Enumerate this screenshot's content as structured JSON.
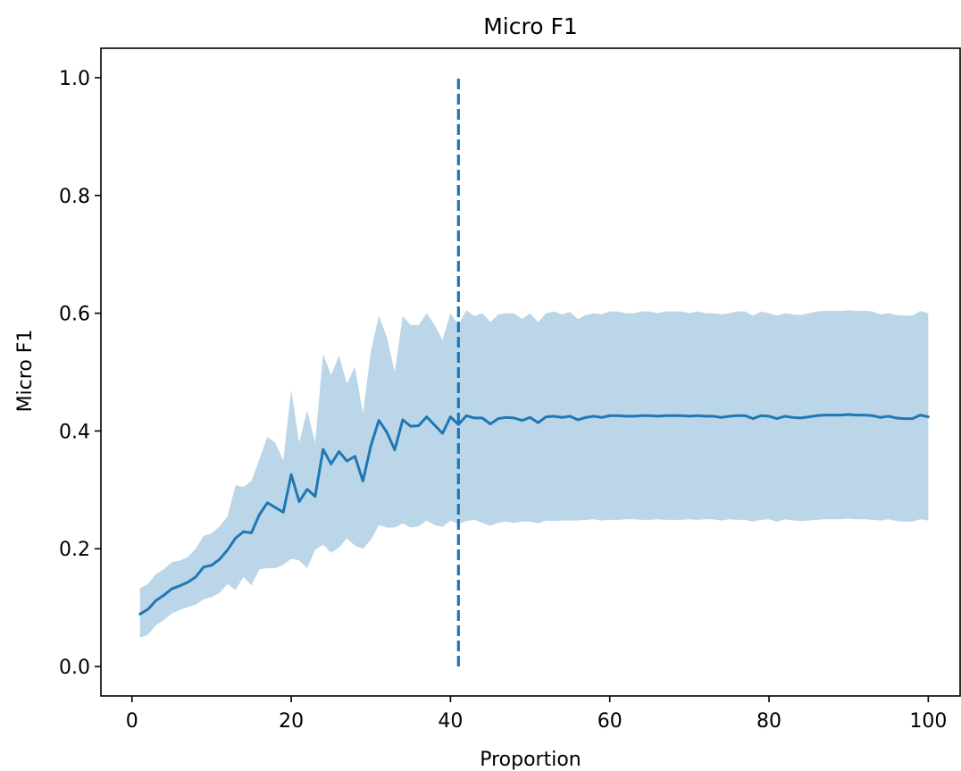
{
  "chart_data": {
    "type": "line",
    "title": "Micro F1",
    "xlabel": "Proportion",
    "ylabel": "Micro F1",
    "xlim": [
      -3.9,
      104.0
    ],
    "ylim": [
      -0.05,
      1.05
    ],
    "xticks": [
      0,
      20,
      40,
      60,
      80,
      100
    ],
    "xtick_labels": [
      "0",
      "20",
      "40",
      "60",
      "80",
      "100"
    ],
    "yticks": [
      0.0,
      0.2,
      0.4,
      0.6,
      0.8,
      1.0
    ],
    "ytick_labels": [
      "0.0",
      "0.2",
      "0.4",
      "0.6",
      "0.8",
      "1.0"
    ],
    "grid": false,
    "colors": {
      "line": "#1f77b4",
      "band": "#1f77b4",
      "band_opacity": 0.3
    },
    "series": [
      {
        "x": [
          1,
          2,
          3,
          4,
          5,
          6,
          7,
          8,
          9,
          10,
          11,
          12,
          13,
          14,
          15,
          16,
          17,
          18,
          19,
          20,
          21,
          22,
          23,
          24,
          25,
          26,
          27,
          28,
          29,
          30,
          31,
          32,
          33,
          34,
          35,
          36,
          37,
          38,
          39,
          40,
          41,
          42,
          43,
          44,
          45,
          46,
          47,
          48,
          49,
          50,
          51,
          52,
          53,
          54,
          55,
          56,
          57,
          58,
          59,
          60,
          61,
          62,
          63,
          64,
          65,
          66,
          67,
          68,
          69,
          70,
          71,
          72,
          73,
          74,
          75,
          76,
          77,
          78,
          79,
          80,
          81,
          82,
          83,
          84,
          85,
          86,
          87,
          88,
          89,
          90,
          91,
          92,
          93,
          94,
          95,
          96,
          97,
          98,
          99,
          100
        ],
        "mean": [
          0.089,
          0.097,
          0.112,
          0.121,
          0.132,
          0.137,
          0.143,
          0.152,
          0.169,
          0.172,
          0.182,
          0.198,
          0.218,
          0.229,
          0.227,
          0.258,
          0.278,
          0.27,
          0.262,
          0.326,
          0.28,
          0.301,
          0.289,
          0.369,
          0.344,
          0.365,
          0.349,
          0.357,
          0.315,
          0.375,
          0.418,
          0.398,
          0.368,
          0.419,
          0.408,
          0.409,
          0.424,
          0.41,
          0.396,
          0.424,
          0.411,
          0.426,
          0.422,
          0.422,
          0.412,
          0.421,
          0.423,
          0.422,
          0.418,
          0.423,
          0.414,
          0.424,
          0.425,
          0.423,
          0.425,
          0.419,
          0.423,
          0.425,
          0.423,
          0.426,
          0.426,
          0.425,
          0.425,
          0.426,
          0.426,
          0.425,
          0.426,
          0.426,
          0.426,
          0.425,
          0.426,
          0.425,
          0.425,
          0.423,
          0.425,
          0.426,
          0.426,
          0.421,
          0.426,
          0.425,
          0.421,
          0.425,
          0.423,
          0.422,
          0.424,
          0.426,
          0.427,
          0.427,
          0.427,
          0.428,
          0.427,
          0.427,
          0.426,
          0.423,
          0.425,
          0.422,
          0.421,
          0.421,
          0.427,
          0.424
        ],
        "upper": [
          0.133,
          0.14,
          0.157,
          0.165,
          0.177,
          0.18,
          0.186,
          0.2,
          0.222,
          0.226,
          0.238,
          0.255,
          0.308,
          0.305,
          0.315,
          0.352,
          0.39,
          0.38,
          0.35,
          0.47,
          0.38,
          0.435,
          0.38,
          0.531,
          0.495,
          0.528,
          0.48,
          0.509,
          0.43,
          0.535,
          0.596,
          0.56,
          0.5,
          0.595,
          0.58,
          0.58,
          0.6,
          0.58,
          0.555,
          0.6,
          0.58,
          0.605,
          0.595,
          0.6,
          0.585,
          0.598,
          0.6,
          0.6,
          0.59,
          0.6,
          0.585,
          0.6,
          0.603,
          0.598,
          0.602,
          0.59,
          0.597,
          0.6,
          0.598,
          0.603,
          0.603,
          0.6,
          0.6,
          0.603,
          0.603,
          0.6,
          0.603,
          0.603,
          0.603,
          0.6,
          0.603,
          0.6,
          0.6,
          0.598,
          0.6,
          0.603,
          0.603,
          0.596,
          0.603,
          0.6,
          0.596,
          0.6,
          0.598,
          0.597,
          0.6,
          0.603,
          0.604,
          0.604,
          0.604,
          0.605,
          0.604,
          0.604,
          0.603,
          0.598,
          0.6,
          0.597,
          0.596,
          0.596,
          0.604,
          0.6
        ],
        "lower": [
          0.049,
          0.054,
          0.07,
          0.079,
          0.09,
          0.096,
          0.101,
          0.105,
          0.114,
          0.118,
          0.125,
          0.14,
          0.13,
          0.152,
          0.138,
          0.165,
          0.167,
          0.167,
          0.173,
          0.183,
          0.18,
          0.167,
          0.198,
          0.207,
          0.193,
          0.202,
          0.218,
          0.205,
          0.2,
          0.215,
          0.24,
          0.236,
          0.236,
          0.243,
          0.236,
          0.238,
          0.248,
          0.24,
          0.237,
          0.248,
          0.242,
          0.247,
          0.249,
          0.244,
          0.239,
          0.244,
          0.246,
          0.244,
          0.246,
          0.246,
          0.243,
          0.248,
          0.247,
          0.248,
          0.248,
          0.248,
          0.249,
          0.25,
          0.248,
          0.249,
          0.249,
          0.25,
          0.25,
          0.249,
          0.249,
          0.25,
          0.249,
          0.249,
          0.249,
          0.25,
          0.249,
          0.25,
          0.25,
          0.248,
          0.25,
          0.249,
          0.249,
          0.246,
          0.249,
          0.25,
          0.246,
          0.25,
          0.248,
          0.247,
          0.248,
          0.249,
          0.25,
          0.25,
          0.25,
          0.251,
          0.25,
          0.25,
          0.249,
          0.248,
          0.25,
          0.247,
          0.246,
          0.246,
          0.25,
          0.248
        ]
      }
    ],
    "vline": {
      "x": 41,
      "y_from": 0.0,
      "y_to": 1.0,
      "style": "dashed"
    }
  }
}
